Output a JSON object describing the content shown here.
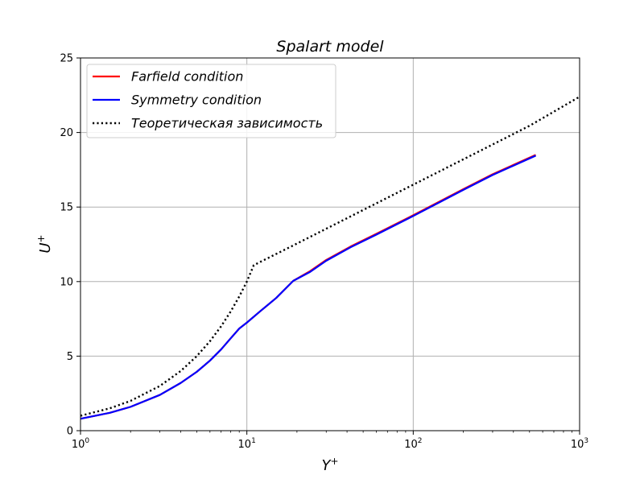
{
  "chart_data": {
    "type": "line",
    "title": "Spalart model",
    "xlabel": "Y",
    "xlabel_sup": "+",
    "ylabel": "U",
    "ylabel_sup": "+",
    "xscale": "log",
    "xlim": [
      1,
      1000
    ],
    "ylim": [
      0,
      25
    ],
    "grid": true,
    "legend_position": "top-left",
    "x_ticks": [
      {
        "value": 1,
        "base": "10",
        "exp": "0"
      },
      {
        "value": 10,
        "base": "10",
        "exp": "1"
      },
      {
        "value": 100,
        "base": "10",
        "exp": "2"
      },
      {
        "value": 1000,
        "base": "10",
        "exp": "3"
      }
    ],
    "y_ticks": [
      {
        "value": 0,
        "label": "0"
      },
      {
        "value": 5,
        "label": "5"
      },
      {
        "value": 10,
        "label": "10"
      },
      {
        "value": 15,
        "label": "15"
      },
      {
        "value": 20,
        "label": "20"
      },
      {
        "value": 25,
        "label": "25"
      }
    ],
    "series": [
      {
        "name": "Farfield condition",
        "color": "#ff0000",
        "style": "solid",
        "x": [
          1,
          1.5,
          2,
          3,
          4,
          5,
          6,
          7,
          8,
          9,
          10,
          12,
          15,
          19,
          24,
          30,
          42,
          60,
          100,
          200,
          300,
          545
        ],
        "y": [
          0.8,
          1.2,
          1.6,
          2.4,
          3.2,
          3.95,
          4.7,
          5.45,
          6.2,
          6.85,
          7.25,
          8.0,
          8.9,
          10.05,
          10.7,
          11.45,
          12.35,
          13.2,
          14.45,
          16.2,
          17.2,
          18.5
        ]
      },
      {
        "name": "Symmetry condition",
        "color": "#0000ff",
        "style": "solid",
        "x": [
          1,
          1.5,
          2,
          3,
          4,
          5,
          6,
          7,
          8,
          9,
          10,
          12,
          15,
          19,
          24,
          30,
          42,
          60,
          100,
          200,
          300,
          545
        ],
        "y": [
          0.8,
          1.2,
          1.6,
          2.4,
          3.2,
          3.95,
          4.7,
          5.45,
          6.2,
          6.85,
          7.25,
          8.0,
          8.9,
          10.05,
          10.65,
          11.4,
          12.3,
          13.15,
          14.4,
          16.15,
          17.15,
          18.45
        ]
      },
      {
        "name": "Теоретическая зависимость",
        "color": "#000000",
        "style": "dotted",
        "x": [
          1,
          1.5,
          2,
          3,
          4,
          5,
          6,
          7,
          8,
          9,
          10,
          11,
          20,
          50,
          100,
          200,
          500,
          1000
        ],
        "y": [
          1.0,
          1.5,
          2.0,
          3.0,
          4.0,
          5.0,
          6.0,
          7.0,
          8.0,
          9.0,
          10.0,
          11.1,
          12.55,
          14.8,
          16.5,
          18.2,
          20.45,
          22.4
        ]
      }
    ]
  }
}
